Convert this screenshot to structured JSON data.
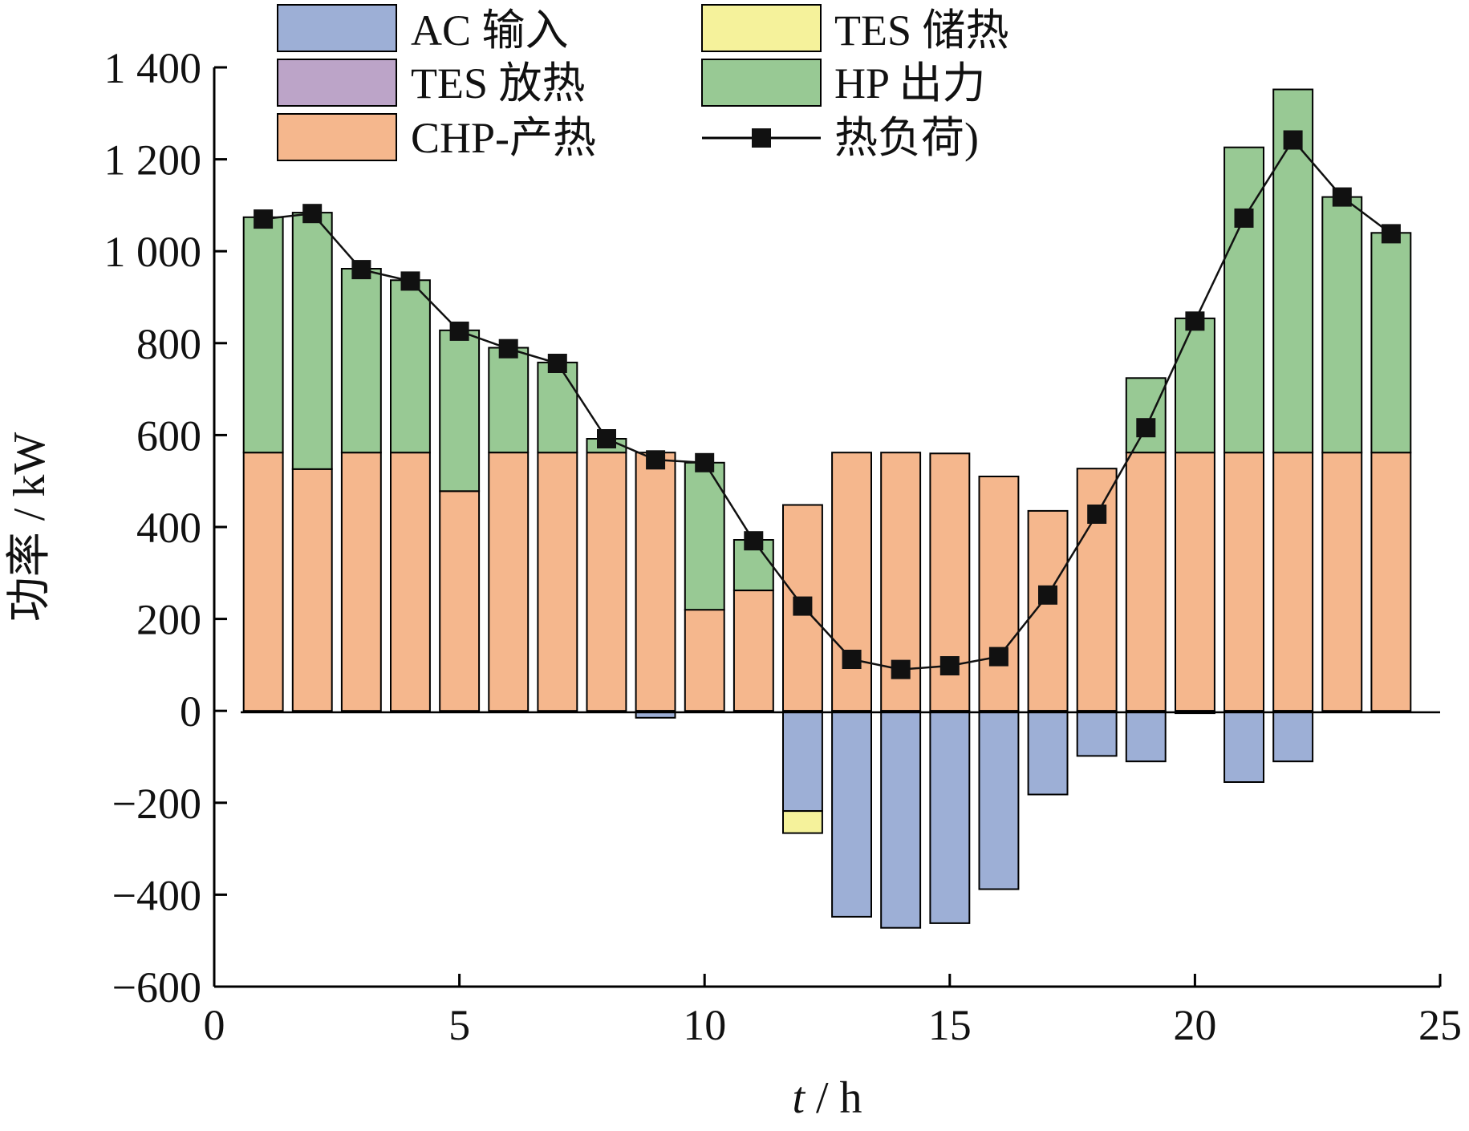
{
  "chart_data": {
    "type": "bar",
    "x": [
      1,
      2,
      3,
      4,
      5,
      6,
      7,
      8,
      9,
      10,
      11,
      12,
      13,
      14,
      15,
      16,
      17,
      18,
      19,
      20,
      21,
      22,
      23,
      24
    ],
    "series": [
      {
        "name": "AC 输入",
        "color": "#9dafd6",
        "values": [
          0,
          0,
          0,
          0,
          0,
          0,
          0,
          0,
          -15,
          0,
          -3,
          -218,
          -448,
          -472,
          -462,
          -388,
          -182,
          -98,
          -110,
          -5,
          -155,
          -110,
          0,
          0
        ]
      },
      {
        "name": "TES 储热",
        "color": "#f5f29b",
        "values": [
          0,
          0,
          0,
          0,
          0,
          0,
          0,
          0,
          0,
          0,
          0,
          -48,
          0,
          0,
          0,
          0,
          0,
          0,
          0,
          0,
          0,
          0,
          0,
          0
        ]
      },
      {
        "name": "TES 放热",
        "color": "#bca4c8",
        "values": [
          0,
          0,
          0,
          0,
          0,
          0,
          0,
          0,
          0,
          0,
          0,
          0,
          0,
          0,
          0,
          0,
          0,
          0,
          0,
          0,
          0,
          0,
          0,
          0
        ]
      },
      {
        "name": "HP 出力",
        "color": "#98c994",
        "values": [
          512,
          558,
          400,
          375,
          350,
          228,
          196,
          30,
          0,
          320,
          110,
          0,
          0,
          0,
          0,
          0,
          0,
          0,
          162,
          292,
          664,
          790,
          556,
          478
        ]
      },
      {
        "name": "CHP-产热",
        "color": "#f5b78d",
        "values": [
          562,
          526,
          562,
          562,
          478,
          562,
          562,
          562,
          562,
          220,
          262,
          448,
          562,
          562,
          560,
          510,
          435,
          527,
          562,
          562,
          562,
          562,
          562,
          562
        ]
      }
    ],
    "line": {
      "name": "热负荷)",
      "values": [
        1070,
        1082,
        960,
        935,
        826,
        788,
        756,
        592,
        546,
        540,
        370,
        228,
        112,
        90,
        98,
        118,
        252,
        428,
        616,
        848,
        1072,
        1242,
        1118,
        1038
      ]
    },
    "xlabel_italic": "t",
    "xlabel_rest": " / h",
    "ylabel": "功率 / kW",
    "xlim": [
      0,
      25
    ],
    "ylim": [
      -600,
      1400
    ],
    "xticks": [
      0,
      5,
      10,
      15,
      20,
      25
    ],
    "xtick_labels": [
      "0",
      "5",
      "10",
      "15",
      "20",
      "25"
    ],
    "yticks": [
      -600,
      -400,
      -200,
      0,
      200,
      400,
      600,
      800,
      1000,
      1200,
      1400
    ],
    "ytick_labels": [
      "−600",
      "−400",
      "−200",
      "0",
      "200",
      "400",
      "600",
      "800",
      "1 000",
      "1 200",
      "1 400"
    ],
    "grid": false,
    "legend_position": "top"
  }
}
